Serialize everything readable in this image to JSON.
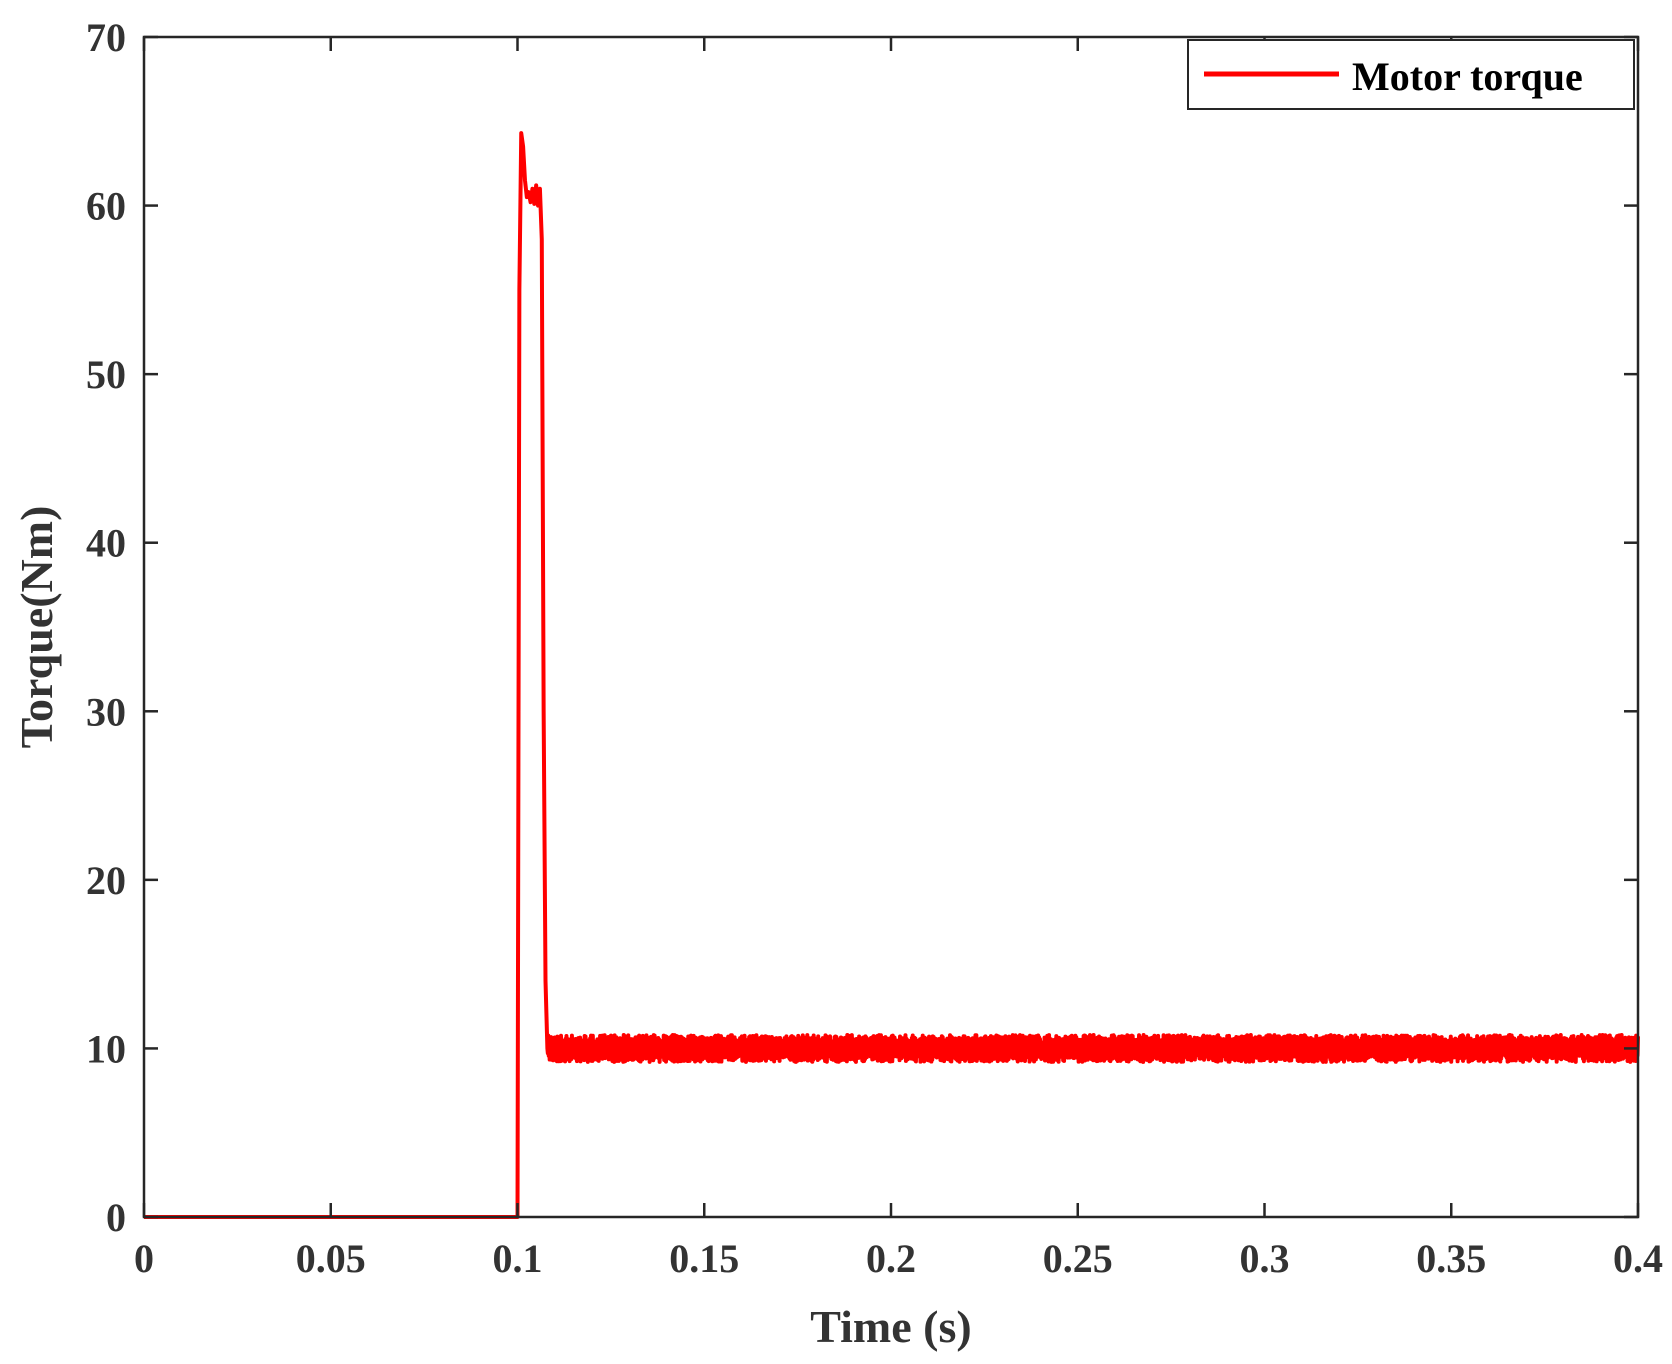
{
  "chart_data": {
    "type": "line",
    "title": "",
    "xlabel": "Time (s)",
    "ylabel": "Torque(Nm)",
    "xlim": [
      0,
      0.4
    ],
    "ylim": [
      0,
      70
    ],
    "xticks": [
      0,
      0.05,
      0.1,
      0.15,
      0.2,
      0.25,
      0.3,
      0.35,
      0.4
    ],
    "xtick_labels": [
      "0",
      "0.05",
      "0.1",
      "0.15",
      "0.2",
      "0.25",
      "0.3",
      "0.35",
      "0.4"
    ],
    "yticks": [
      0,
      10,
      20,
      30,
      40,
      50,
      60,
      70
    ],
    "ytick_labels": [
      "0",
      "10",
      "20",
      "30",
      "40",
      "50",
      "60",
      "70"
    ],
    "grid": false,
    "legend": {
      "position": "top-right",
      "entries": [
        "Motor torque"
      ]
    },
    "series": [
      {
        "name": "Motor torque",
        "color": "#ff0000",
        "x": [
          0,
          0.05,
          0.0995,
          0.1,
          0.1005,
          0.101,
          0.1015,
          0.102,
          0.1025,
          0.103,
          0.1035,
          0.104,
          0.1045,
          0.105,
          0.1055,
          0.106,
          0.1065,
          0.107,
          0.1075,
          0.108,
          0.1085,
          0.109,
          0.11,
          0.115,
          0.12,
          0.15,
          0.2,
          0.25,
          0.3,
          0.35,
          0.4
        ],
        "y": [
          0,
          0,
          0,
          0,
          55,
          64.3,
          63.5,
          61.5,
          60.5,
          60.8,
          60.2,
          61.0,
          60.1,
          61.2,
          60.0,
          61.0,
          58.0,
          30.0,
          14.0,
          10.0,
          9.5,
          9.8,
          10.0,
          9.8,
          10.0,
          10.0,
          10.0,
          10.0,
          10.0,
          10.0,
          10.0
        ],
        "noise_band": {
          "from_x": 0.108,
          "to_x": 0.4,
          "center": 10.0,
          "amplitude": 0.8
        }
      }
    ]
  }
}
